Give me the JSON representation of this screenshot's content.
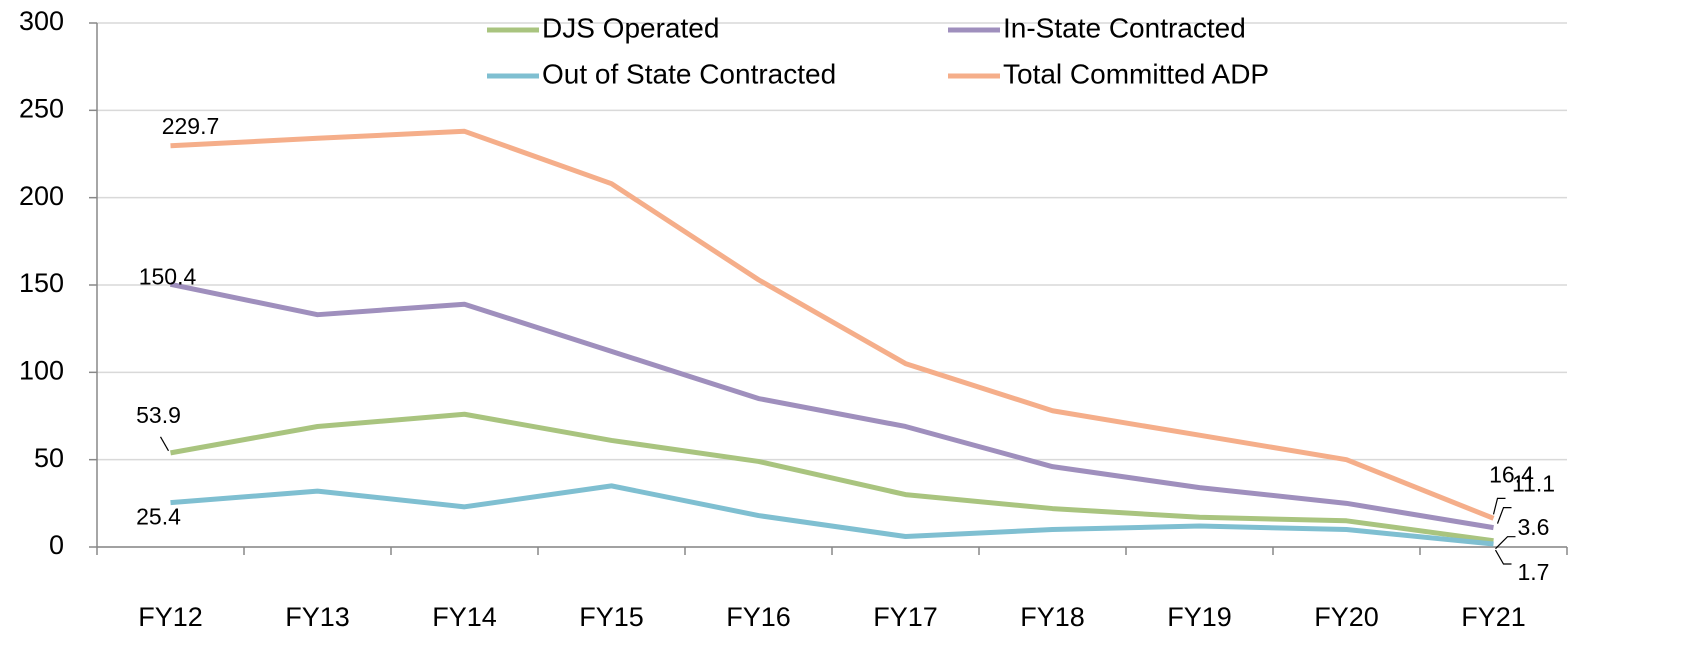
{
  "chart_data": {
    "type": "line",
    "categories": [
      "FY12",
      "FY13",
      "FY14",
      "FY15",
      "FY16",
      "FY17",
      "FY18",
      "FY19",
      "FY20",
      "FY21"
    ],
    "series": [
      {
        "name": "DJS Operated",
        "color": "#a9c47f",
        "values": [
          53.9,
          69,
          76,
          61,
          49,
          30,
          22,
          17,
          15,
          3.6
        ]
      },
      {
        "name": "In-State Contracted",
        "color": "#9f8fbd",
        "values": [
          150.4,
          133,
          139,
          112,
          85,
          69,
          46,
          34,
          25,
          11.1
        ]
      },
      {
        "name": "Out of State Contracted",
        "color": "#7fbfd1",
        "values": [
          25.4,
          32,
          23,
          35,
          18,
          6,
          10,
          12,
          10,
          1.7
        ]
      },
      {
        "name": "Total Committed ADP",
        "color": "#f5ae8a",
        "values": [
          229.7,
          234,
          238,
          208,
          153,
          105,
          78,
          64,
          50,
          16.4
        ]
      }
    ],
    "label_points": [
      0,
      9
    ],
    "ylim": [
      0,
      300
    ],
    "yticks": [
      0,
      50,
      100,
      150,
      200,
      250,
      300
    ],
    "grid": true
  }
}
